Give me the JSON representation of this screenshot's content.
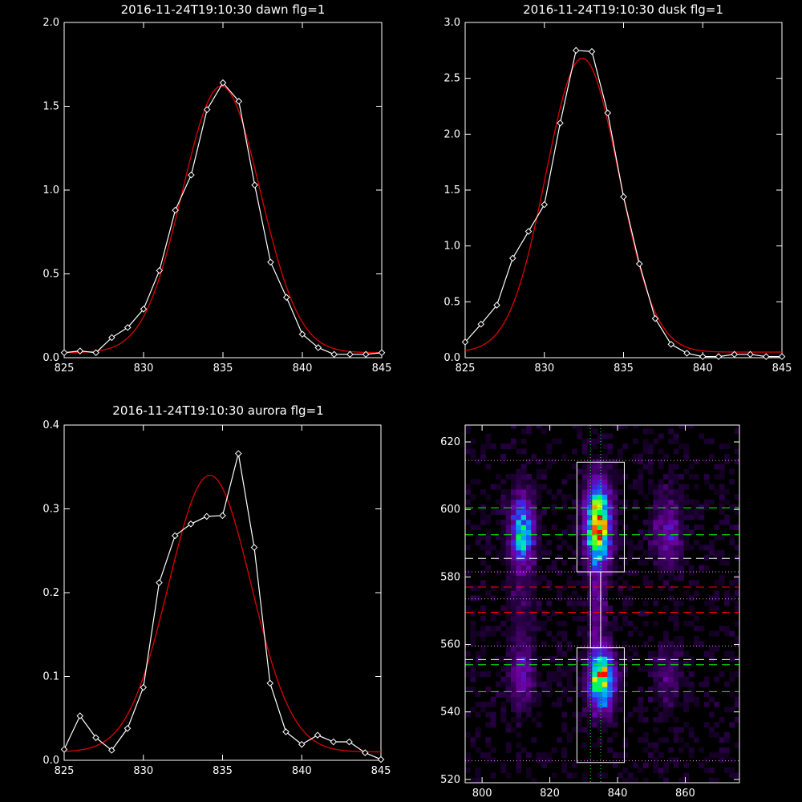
{
  "chart_data": [
    {
      "type": "line",
      "title": "2016-11-24T19:10:30 dawn flg=1",
      "xlim": [
        825,
        845
      ],
      "ylim": [
        0,
        2.0
      ],
      "xticks": [
        825,
        830,
        835,
        840,
        845
      ],
      "yticks": [
        0.0,
        0.5,
        1.0,
        1.5,
        2.0
      ],
      "ytick_labels": [
        "0.0",
        "0.5",
        "1.0",
        "1.5",
        "2.0"
      ],
      "series": [
        {
          "x": [
            825,
            826,
            827,
            828,
            829,
            830,
            831,
            832,
            833,
            834,
            835,
            836,
            837,
            838,
            839,
            840,
            841,
            842,
            843,
            844,
            845
          ],
          "values": [
            0.03,
            0.04,
            0.03,
            0.12,
            0.18,
            0.29,
            0.52,
            0.88,
            1.09,
            1.48,
            1.64,
            1.53,
            1.03,
            0.57,
            0.36,
            0.14,
            0.06,
            0.02,
            0.02,
            0.02,
            0.03
          ],
          "color": "#ffffff",
          "marker": "diamond"
        },
        {
          "fit": "gaussian",
          "amplitude": 1.59,
          "center": 834.9,
          "sigma": 2.45,
          "offset": 0.03,
          "color": "#e00000"
        }
      ]
    },
    {
      "type": "line",
      "title": "2016-11-24T19:10:30 dusk flg=1",
      "xlim": [
        825,
        845
      ],
      "ylim": [
        0,
        3.0
      ],
      "xticks": [
        825,
        830,
        835,
        840,
        845
      ],
      "yticks": [
        0.0,
        0.5,
        1.0,
        1.5,
        2.0,
        2.5,
        3.0
      ],
      "ytick_labels": [
        "0.0",
        "0.5",
        "1.0",
        "1.5",
        "2.0",
        "2.5",
        "3.0"
      ],
      "series": [
        {
          "x": [
            825,
            826,
            827,
            828,
            829,
            830,
            831,
            832,
            833,
            834,
            835,
            836,
            837,
            838,
            839,
            840,
            841,
            842,
            843,
            844,
            845
          ],
          "values": [
            0.14,
            0.3,
            0.47,
            0.89,
            1.13,
            1.37,
            2.1,
            2.75,
            2.74,
            2.19,
            1.44,
            0.84,
            0.35,
            0.12,
            0.04,
            0.01,
            0.01,
            0.03,
            0.03,
            0.01,
            0.01
          ],
          "color": "#ffffff",
          "marker": "diamond"
        },
        {
          "fit": "gaussian",
          "amplitude": 2.63,
          "center": 832.4,
          "sigma": 2.3,
          "offset": 0.05,
          "color": "#e00000"
        }
      ]
    },
    {
      "type": "line",
      "title": "2016-11-24T19:10:30 aurora flg=1",
      "xlim": [
        825,
        845
      ],
      "ylim": [
        0,
        0.4
      ],
      "xticks": [
        825,
        830,
        835,
        840,
        845
      ],
      "yticks": [
        0.0,
        0.1,
        0.2,
        0.3,
        0.4
      ],
      "ytick_labels": [
        "0.0",
        "0.1",
        "0.2",
        "0.3",
        "0.4"
      ],
      "series": [
        {
          "x": [
            825,
            826,
            827,
            828,
            829,
            830,
            831,
            832,
            833,
            834,
            835,
            836,
            837,
            838,
            839,
            840,
            841,
            842,
            843,
            844,
            845
          ],
          "values": [
            0.013,
            0.053,
            0.027,
            0.012,
            0.038,
            0.087,
            0.212,
            0.268,
            0.282,
            0.291,
            0.292,
            0.366,
            0.254,
            0.092,
            0.034,
            0.019,
            0.03,
            0.022,
            0.022,
            0.009,
            0.001
          ],
          "color": "#ffffff",
          "marker": "diamond"
        },
        {
          "fit": "gaussian",
          "amplitude": 0.33,
          "center": 834.2,
          "sigma": 2.6,
          "offset": 0.01,
          "color": "#e00000"
        }
      ]
    },
    {
      "type": "heatmap",
      "title": "",
      "xlim": [
        795,
        876
      ],
      "ylim": [
        519,
        625
      ],
      "xticks": [
        800,
        820,
        840,
        860
      ],
      "yticks": [
        520,
        540,
        560,
        580,
        600,
        620
      ],
      "blobs": [
        {
          "x": 833.5,
          "y": 595,
          "sx": 2.6,
          "sy": 8.5,
          "amp": 1.0
        },
        {
          "x": 834.5,
          "y": 549,
          "sx": 2.6,
          "sy": 6.0,
          "amp": 0.9
        },
        {
          "x": 811,
          "y": 593,
          "sx": 2.5,
          "sy": 7.5,
          "amp": 0.62
        },
        {
          "x": 811,
          "y": 550,
          "sx": 2.5,
          "sy": 6.0,
          "amp": 0.3
        },
        {
          "x": 833.5,
          "y": 570,
          "sx": 1.6,
          "sy": 10,
          "amp": 0.22
        },
        {
          "x": 854,
          "y": 593,
          "sx": 3.0,
          "sy": 7.5,
          "amp": 0.28
        },
        {
          "x": 854,
          "y": 550,
          "sx": 3.0,
          "sy": 6.0,
          "amp": 0.18
        },
        {
          "x": 811,
          "y": 570,
          "sx": 2.5,
          "sy": 9,
          "amp": 0.12
        }
      ],
      "boxes": [
        {
          "x0": 828,
          "x1": 842,
          "y0": 581.5,
          "y1": 614,
          "color": "#ffffff"
        },
        {
          "x0": 828,
          "x1": 842,
          "y0": 525,
          "y1": 559,
          "color": "#ffffff"
        },
        {
          "x0": 832,
          "x1": 835,
          "y0": 559,
          "y1": 581.5,
          "color": "#ffffff"
        }
      ],
      "hlines": [
        {
          "y": 614.5,
          "style": "dotted",
          "color": "#ff80ff"
        },
        {
          "y": 600.5,
          "style": "dashed",
          "color": "#00ff00"
        },
        {
          "y": 592.5,
          "style": "dashed",
          "color": "#00ff00"
        },
        {
          "y": 585.5,
          "style": "dashed",
          "color": "#ffffff"
        },
        {
          "y": 581.5,
          "style": "dotted",
          "color": "#ff80ff"
        },
        {
          "y": 577,
          "style": "dashed",
          "color": "#ff0000"
        },
        {
          "y": 573.5,
          "style": "dotted",
          "color": "#ff80ff"
        },
        {
          "y": 569.5,
          "style": "dashed",
          "color": "#ff0000"
        },
        {
          "y": 559.5,
          "style": "dotted",
          "color": "#ff80ff"
        },
        {
          "y": 555.5,
          "style": "dashed",
          "color": "#ffffff"
        },
        {
          "y": 554,
          "style": "dashed",
          "color": "#00ff00"
        },
        {
          "y": 546,
          "style": "dashed",
          "color": "#00ff00"
        },
        {
          "y": 525.5,
          "style": "dotted",
          "color": "#ff80ff"
        }
      ],
      "vlines": [
        {
          "x": 832,
          "style": "dotted",
          "color": "#00ff00"
        },
        {
          "x": 835,
          "style": "dotted",
          "color": "#00ff00"
        }
      ]
    }
  ]
}
